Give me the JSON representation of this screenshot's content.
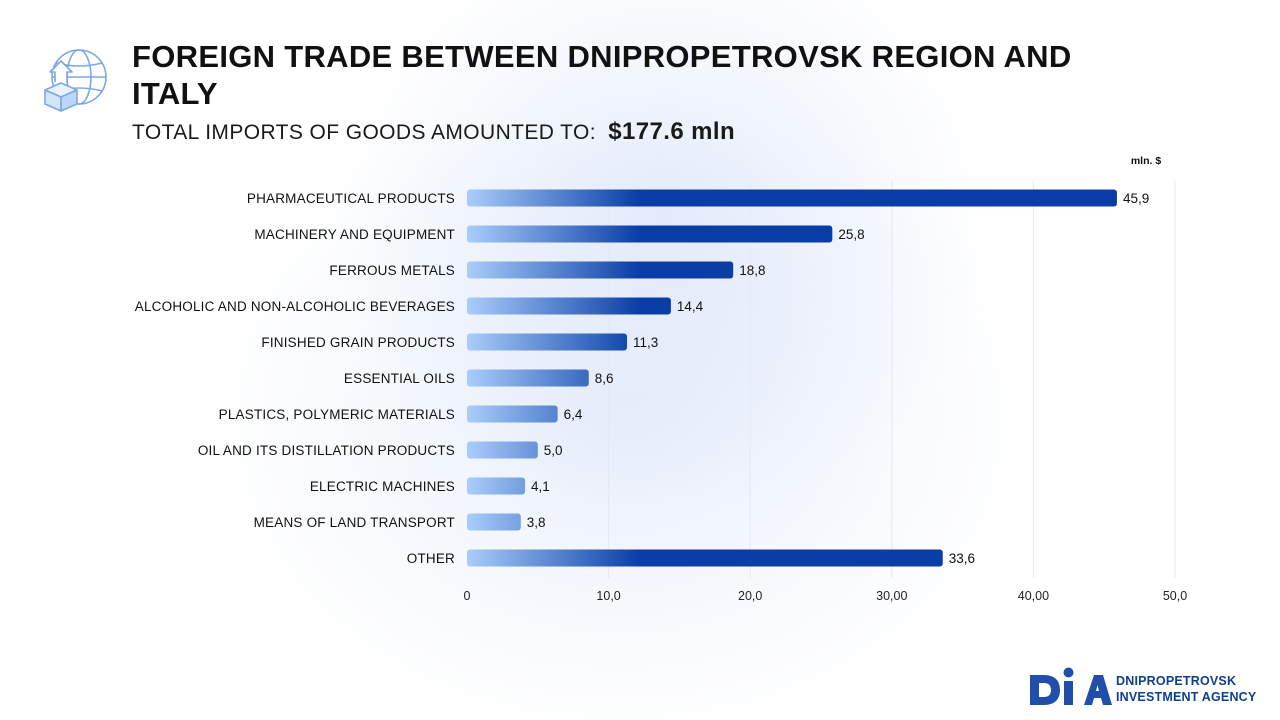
{
  "header": {
    "icon": "globe-box-upload-icon",
    "title": "FOREIGN TRADE BETWEEN DNIPROPETROVSK REGION AND ITALY",
    "subtitle_label": "TOTAL IMPORTS OF GOODS AMOUNTED TO:",
    "subtitle_total": "$177.6  mln"
  },
  "colors": {
    "bar_start": "#a9cdfb",
    "bar_end": "#0a3ea6",
    "accent": "#1f4fa8"
  },
  "chart_data": {
    "type": "bar",
    "orientation": "horizontal",
    "unit": "mln. $",
    "categories": [
      "PHARMACEUTICAL PRODUCTS",
      "MACHINERY AND EQUIPMENT",
      "FERROUS METALS",
      "ALCOHOLIC AND NON-ALCOHOLIC BEVERAGES",
      "FINISHED GRAIN PRODUCTS",
      "ESSENTIAL OILS",
      "PLASTICS, POLYMERIC MATERIALS",
      "OIL AND ITS DISTILLATION PRODUCTS",
      "ELECTRIC MACHINES",
      "MEANS OF LAND TRANSPORT",
      "OTHER"
    ],
    "values": [
      45.9,
      25.8,
      18.8,
      14.4,
      11.3,
      8.6,
      6.4,
      5.0,
      4.1,
      3.8,
      33.6
    ],
    "value_labels": [
      "45,9",
      "25,8",
      "18,8",
      "14,4",
      "11,3",
      "8,6",
      "6,4",
      "5,0",
      "4,1",
      "3,8",
      "33,6"
    ],
    "xlim": [
      0,
      50
    ],
    "x_ticks": [
      0,
      10,
      20,
      30,
      40,
      50
    ],
    "x_tick_labels": [
      "0",
      "10,0",
      "20,0",
      "30,00",
      "40,00",
      "50,0"
    ],
    "grid": "vertical",
    "legend": "none"
  },
  "logo": {
    "mark": "DIA",
    "line1": "DNIPROPETROVSK",
    "line2": "INVESTMENT AGENCY"
  }
}
